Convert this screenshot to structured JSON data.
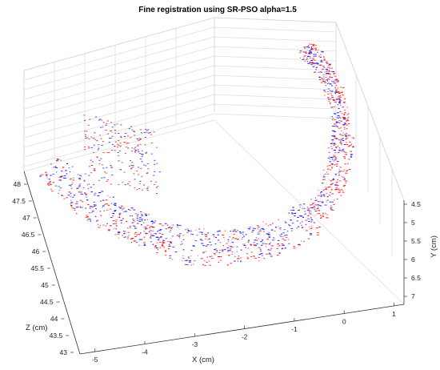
{
  "chart_data": {
    "type": "scatter",
    "title": "Fine registration using SR-PSO alpha=1.5",
    "xlabel": "X (cm)",
    "ylabel": "Y (cm)",
    "zlabel": "Z (cm)",
    "x_ticks": [
      "-5",
      "-4",
      "-3",
      "-2",
      "-1",
      "0",
      "1"
    ],
    "y_ticks": [
      "4.5",
      "5",
      "5.5",
      "6",
      "6.5",
      "7"
    ],
    "z_ticks": [
      "43",
      "43.5",
      "44",
      "44.5",
      "45",
      "45.5",
      "46",
      "46.5",
      "47",
      "47.5",
      "48"
    ],
    "xlim": [
      -5.3,
      1.2
    ],
    "ylim": [
      4.3,
      7.2
    ],
    "zlim": [
      42.8,
      48.3
    ],
    "grid": true,
    "series": [
      {
        "color": "#0000ff"
      },
      {
        "color": "#ff0000"
      }
    ]
  }
}
